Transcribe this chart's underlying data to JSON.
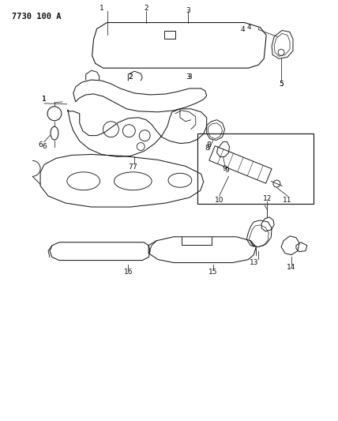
{
  "title": "7730 100 A",
  "bg_color": "#ffffff",
  "lc": "#1a1a1a",
  "fig_width": 4.28,
  "fig_height": 5.33,
  "dpi": 100
}
